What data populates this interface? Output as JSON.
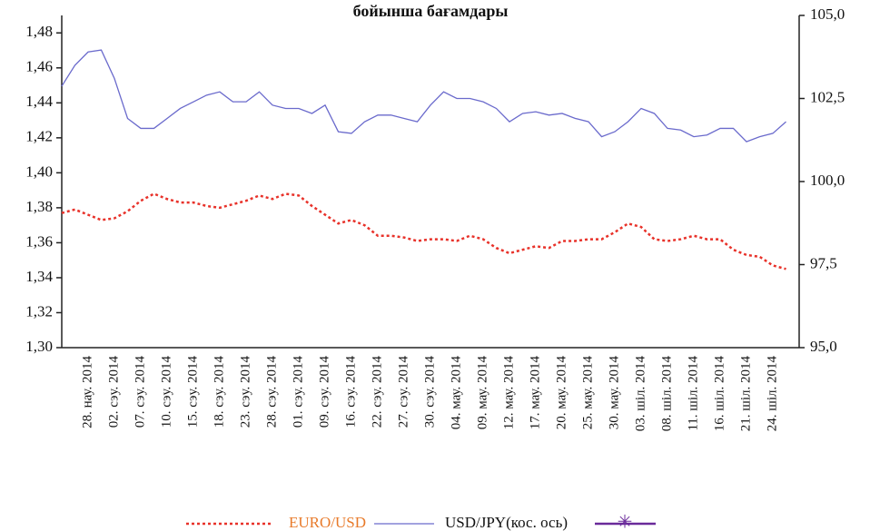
{
  "chart_data": {
    "type": "line",
    "title": "бойынша бағамдары",
    "categories": [
      null,
      null,
      "28. нау. 2014",
      null,
      "02. сэу. 2014",
      null,
      "07. сэу. 2014",
      null,
      "10. сэу. 2014",
      null,
      "15. сэу. 2014",
      null,
      "18. сэу. 2014",
      null,
      "23. сэу. 2014",
      null,
      "28. сэу. 2014",
      null,
      "01. сэу. 2014",
      null,
      "09. сэу. 2014",
      null,
      "16. сэу. 2014",
      null,
      "22. сэу. 2014",
      null,
      "27. сэу. 2014",
      null,
      "30. сэу. 2014",
      null,
      "04. мау. 2014",
      null,
      "09. мау. 2014",
      null,
      "12. мау. 2014",
      null,
      "17. мау. 2014",
      null,
      "20. мау. 2014",
      null,
      "25. мау. 2014",
      null,
      "30. мау. 2014",
      null,
      "03. шіл. 2014",
      null,
      "08. шіл. 2014",
      null,
      "11. шіл. 2014",
      null,
      "16. шіл. 2014",
      null,
      "21. шіл. 2014",
      null,
      "24. шіл. 2014",
      null
    ],
    "series": [
      {
        "name": "EURO/USD",
        "color": "#e8322a",
        "dash": true,
        "values": [
          1.377,
          1.379,
          1.376,
          1.373,
          1.374,
          1.378,
          1.384,
          1.388,
          1.385,
          1.383,
          1.383,
          1.381,
          1.38,
          1.382,
          1.384,
          1.387,
          1.385,
          1.388,
          1.387,
          1.381,
          1.376,
          1.371,
          1.373,
          1.37,
          1.364,
          1.364,
          1.363,
          1.361,
          1.362,
          1.362,
          1.361,
          1.364,
          1.362,
          1.357,
          1.354,
          1.356,
          1.358,
          1.357,
          1.361,
          1.361,
          1.362,
          1.362,
          1.366,
          1.371,
          1.369,
          1.362,
          1.361,
          1.362,
          1.364,
          1.362,
          1.362,
          1.356,
          1.353,
          1.352,
          1.347,
          1.345
        ]
      },
      {
        "name": "USD/JPY(кос. ось)",
        "color": "#6a6acc",
        "axis": "y2",
        "values": [
          102.87,
          103.5,
          103.9,
          103.96,
          103.1,
          101.9,
          101.6,
          101.6,
          101.9,
          102.2,
          102.4,
          102.6,
          102.7,
          102.4,
          102.4,
          102.7,
          102.3,
          102.2,
          102.2,
          102.05,
          102.3,
          101.5,
          101.45,
          101.8,
          102.0,
          102.0,
          101.9,
          101.8,
          102.3,
          102.7,
          102.5,
          102.5,
          102.4,
          102.2,
          101.8,
          102.05,
          102.1,
          102.0,
          102.05,
          101.9,
          101.8,
          101.35,
          101.5,
          101.8,
          102.2,
          102.05,
          101.6,
          101.55,
          101.35,
          101.4,
          101.6,
          101.6,
          101.2,
          101.35,
          101.45,
          101.8
        ]
      }
    ],
    "ylim": [
      1.3,
      1.49
    ],
    "yticks": [
      {
        "value": 1.3,
        "label": "1,30"
      },
      {
        "value": 1.32,
        "label": "1,32"
      },
      {
        "value": 1.34,
        "label": "1,34"
      },
      {
        "value": 1.36,
        "label": "1,36"
      },
      {
        "value": 1.38,
        "label": "1,38"
      },
      {
        "value": 1.4,
        "label": "1,40"
      },
      {
        "value": 1.42,
        "label": "1,42"
      },
      {
        "value": 1.44,
        "label": "1,44"
      },
      {
        "value": 1.46,
        "label": "1,46"
      },
      {
        "value": 1.48,
        "label": "1,48"
      }
    ],
    "y2lim": [
      95,
      105
    ],
    "y2ticks": [
      {
        "value": 95,
        "label": "95,0"
      },
      {
        "value": 97.5,
        "label": "97,5"
      },
      {
        "value": 100,
        "label": "100,0"
      },
      {
        "value": 102.5,
        "label": "102,5"
      },
      {
        "value": 105,
        "label": "105,0"
      }
    ],
    "grid": false,
    "legend": "bottom"
  }
}
